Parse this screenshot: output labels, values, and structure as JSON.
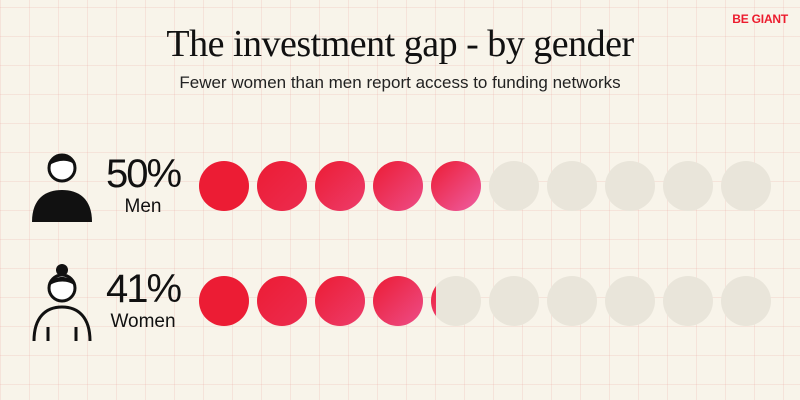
{
  "brand": "BE GIANT",
  "chart_data": {
    "type": "pictogram",
    "title": "The investment gap - by gender",
    "subtitle": "Fewer women than men report access to funding networks",
    "units_per_row": 10,
    "series": [
      {
        "name": "Men",
        "value": 50,
        "label": "50%",
        "icon": "man-icon"
      },
      {
        "name": "Women",
        "value": 41,
        "label": "41%",
        "icon": "woman-icon"
      }
    ],
    "colors": {
      "filled_start": "#ec1c34",
      "filled_end": "#ee5fa6",
      "empty": "#e9e5da"
    }
  }
}
